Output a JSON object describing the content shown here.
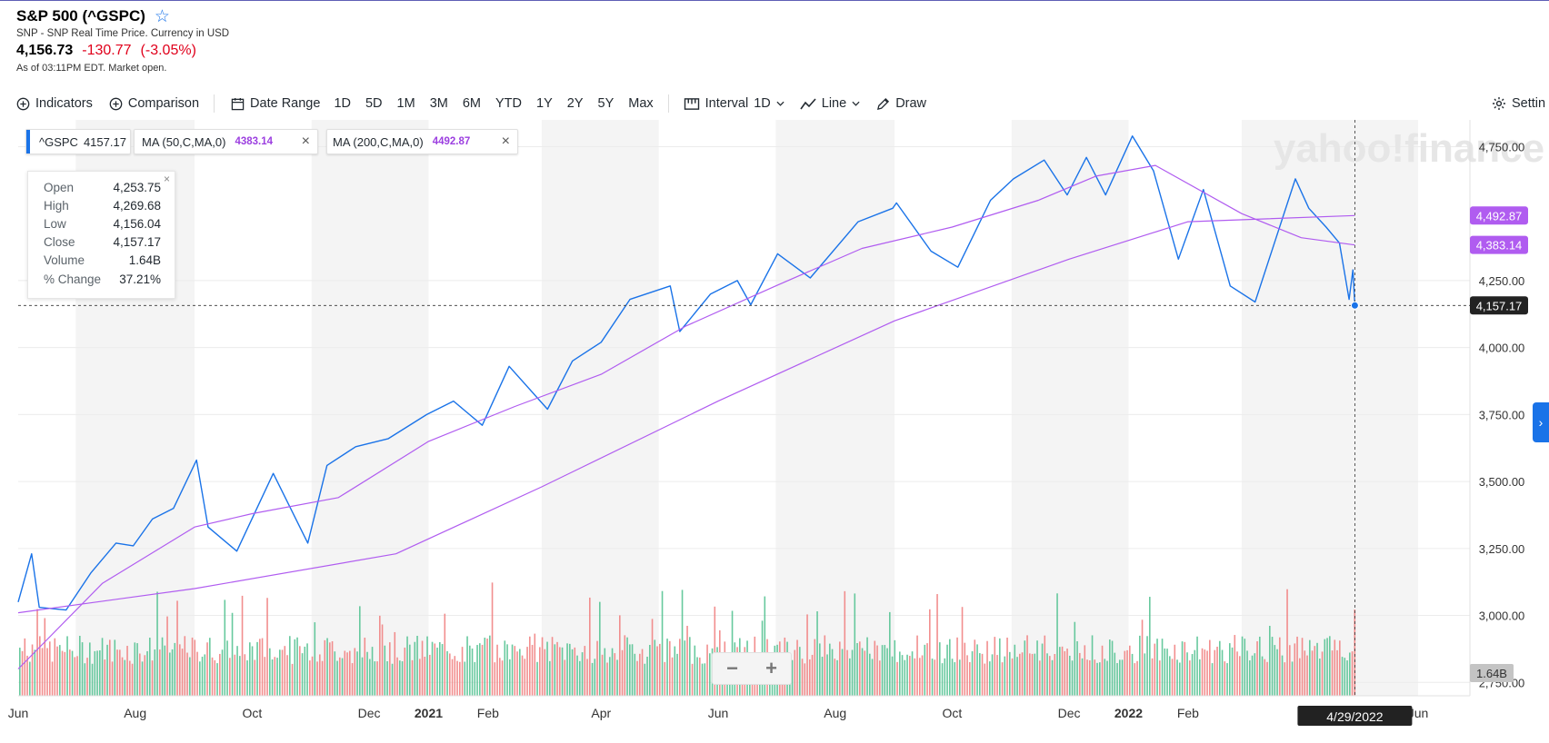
{
  "header": {
    "title": "S&P 500 (^GSPC)",
    "subtitle": "SNP - SNP Real Time Price. Currency in USD",
    "price": "4,156.73",
    "change": "-130.77",
    "change_pct": "(-3.05%)",
    "as_of": "As of 03:11PM EDT. Market open."
  },
  "toolbar": {
    "indicators": "Indicators",
    "comparison": "Comparison",
    "date_range": "Date Range",
    "ranges": [
      "1D",
      "5D",
      "1M",
      "3M",
      "6M",
      "YTD",
      "1Y",
      "2Y",
      "5Y",
      "Max"
    ],
    "interval_label": "Interval",
    "interval_value": "1D",
    "chart_type": "Line",
    "draw": "Draw",
    "settings": "Settin"
  },
  "legend_chips": {
    "gspc": {
      "label": "^GSPC",
      "value": "4157.17"
    },
    "ma50": {
      "label": "MA (50,C,MA,0)",
      "value": "4383.14"
    },
    "ma200": {
      "label": "MA (200,C,MA,0)",
      "value": "4492.87"
    }
  },
  "tooltip": {
    "rows": [
      {
        "label": "Open",
        "value": "4,253.75"
      },
      {
        "label": "High",
        "value": "4,269.68"
      },
      {
        "label": "Low",
        "value": "4,156.04"
      },
      {
        "label": "Close",
        "value": "4,157.17"
      },
      {
        "label": "Volume",
        "value": "1.64B"
      },
      {
        "label": "% Change",
        "value": "37.21%"
      }
    ]
  },
  "watermark": "yahoo!finance",
  "colors": {
    "price": "#1a73e8",
    "ma": "#b05cf0",
    "vol_up": "#4cc08d",
    "vol_down": "#f07a7a",
    "negative": "#e0001b"
  },
  "chart_data": {
    "type": "line",
    "ylim": [
      2700,
      4850
    ],
    "ytick_labels": [
      "4,750.00",
      "4,250.00",
      "4,000.00",
      "3,750.00",
      "3,500.00",
      "3,250.00",
      "3,000.00",
      "2,750.00"
    ],
    "ytick_values": [
      4750,
      4250,
      4000,
      3750,
      3500,
      3250,
      3000,
      2750
    ],
    "xtick_labels": [
      "Jun",
      "Aug",
      "Oct",
      "Dec",
      "2021",
      "Feb",
      "Apr",
      "Jun",
      "Aug",
      "Oct",
      "Dec",
      "2022",
      "Feb",
      "Jun"
    ],
    "xtick_dates": [
      "2020-06-01",
      "2020-08-01",
      "2020-10-01",
      "2020-12-01",
      "2021-01-01",
      "2021-02-01",
      "2021-04-01",
      "2021-06-01",
      "2021-08-01",
      "2021-10-01",
      "2021-12-01",
      "2022-01-01",
      "2022-02-01",
      "2022-06-01"
    ],
    "xlim": [
      "2020-06-01",
      "2022-06-28"
    ],
    "crosshair": {
      "date_label": "4/29/2022",
      "value": 4157.17,
      "value_label": "4,157.17",
      "date": "2022-04-29"
    },
    "volume_label": "1.64B",
    "series": [
      {
        "name": "^GSPC",
        "values": [
          [
            "2020-06-01",
            3050
          ],
          [
            "2020-06-08",
            3230
          ],
          [
            "2020-06-12",
            3030
          ],
          [
            "2020-06-26",
            3020
          ],
          [
            "2020-07-09",
            3160
          ],
          [
            "2020-07-22",
            3270
          ],
          [
            "2020-07-31",
            3260
          ],
          [
            "2020-08-10",
            3360
          ],
          [
            "2020-08-21",
            3400
          ],
          [
            "2020-09-02",
            3580
          ],
          [
            "2020-09-08",
            3330
          ],
          [
            "2020-09-23",
            3240
          ],
          [
            "2020-10-12",
            3530
          ],
          [
            "2020-10-30",
            3270
          ],
          [
            "2020-11-09",
            3560
          ],
          [
            "2020-11-24",
            3630
          ],
          [
            "2020-12-11",
            3660
          ],
          [
            "2020-12-31",
            3750
          ],
          [
            "2021-01-14",
            3800
          ],
          [
            "2021-01-29",
            3710
          ],
          [
            "2021-02-12",
            3930
          ],
          [
            "2021-03-04",
            3770
          ],
          [
            "2021-03-17",
            3950
          ],
          [
            "2021-04-01",
            4020
          ],
          [
            "2021-04-16",
            4180
          ],
          [
            "2021-05-07",
            4230
          ],
          [
            "2021-05-12",
            4060
          ],
          [
            "2021-05-28",
            4200
          ],
          [
            "2021-06-11",
            4250
          ],
          [
            "2021-06-18",
            4160
          ],
          [
            "2021-07-02",
            4350
          ],
          [
            "2021-07-19",
            4260
          ],
          [
            "2021-08-13",
            4470
          ],
          [
            "2021-08-31",
            4520
          ],
          [
            "2021-09-02",
            4540
          ],
          [
            "2021-09-20",
            4360
          ],
          [
            "2021-10-04",
            4300
          ],
          [
            "2021-10-21",
            4550
          ],
          [
            "2021-11-02",
            4630
          ],
          [
            "2021-11-18",
            4700
          ],
          [
            "2021-11-30",
            4570
          ],
          [
            "2021-12-10",
            4710
          ],
          [
            "2021-12-20",
            4570
          ],
          [
            "2022-01-03",
            4790
          ],
          [
            "2022-01-14",
            4660
          ],
          [
            "2022-01-27",
            4330
          ],
          [
            "2022-02-09",
            4590
          ],
          [
            "2022-02-23",
            4230
          ],
          [
            "2022-03-08",
            4170
          ],
          [
            "2022-03-29",
            4630
          ],
          [
            "2022-04-05",
            4520
          ],
          [
            "2022-04-14",
            4450
          ],
          [
            "2022-04-21",
            4390
          ],
          [
            "2022-04-26",
            4180
          ],
          [
            "2022-04-28",
            4290
          ],
          [
            "2022-04-29",
            4157.17
          ]
        ]
      },
      {
        "name": "MA (50,C,MA,0)",
        "values": [
          [
            "2020-06-01",
            2800
          ],
          [
            "2020-07-15",
            3120
          ],
          [
            "2020-09-01",
            3330
          ],
          [
            "2020-10-01",
            3380
          ],
          [
            "2020-11-15",
            3440
          ],
          [
            "2021-01-01",
            3650
          ],
          [
            "2021-02-15",
            3780
          ],
          [
            "2021-04-01",
            3900
          ],
          [
            "2021-05-15",
            4080
          ],
          [
            "2021-07-01",
            4230
          ],
          [
            "2021-08-15",
            4370
          ],
          [
            "2021-10-01",
            4450
          ],
          [
            "2021-11-15",
            4550
          ],
          [
            "2021-12-15",
            4640
          ],
          [
            "2022-01-15",
            4680
          ],
          [
            "2022-03-01",
            4500
          ],
          [
            "2022-04-01",
            4410
          ],
          [
            "2022-04-29",
            4383.14
          ]
        ]
      },
      {
        "name": "MA (200,C,MA,0)",
        "values": [
          [
            "2020-06-01",
            3010
          ],
          [
            "2020-09-01",
            3100
          ],
          [
            "2020-12-15",
            3230
          ],
          [
            "2021-03-01",
            3480
          ],
          [
            "2021-06-01",
            3800
          ],
          [
            "2021-09-01",
            4100
          ],
          [
            "2021-12-01",
            4330
          ],
          [
            "2022-02-01",
            4470
          ],
          [
            "2022-04-29",
            4492.87
          ]
        ]
      }
    ]
  }
}
